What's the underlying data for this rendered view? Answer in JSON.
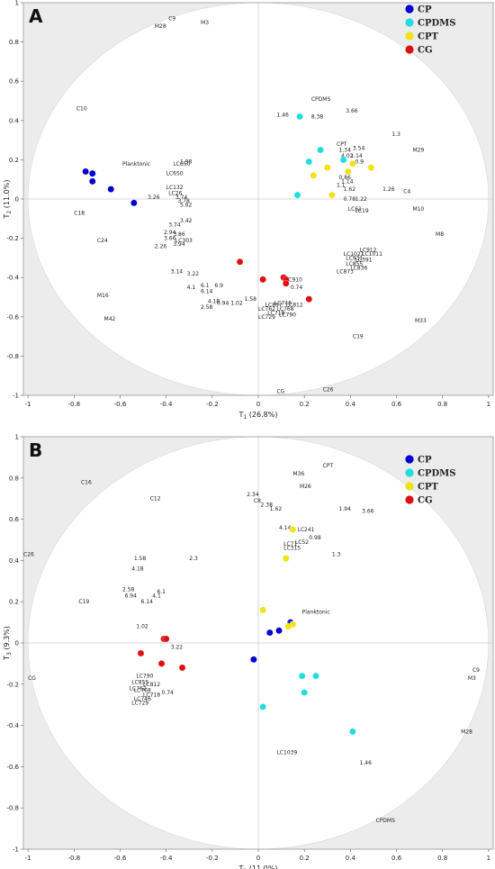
{
  "colors": {
    "CP": "#0000cc",
    "CPDMS": "#22dddd",
    "CPT": "#f2e218",
    "CG": "#dd1111",
    "shade": "#ececec",
    "grid": "#cfcfcf"
  },
  "legend": [
    "CP",
    "CPDMS",
    "CPT",
    "CG"
  ],
  "chart_data": [
    {
      "type": "scatter",
      "panel_label": "A",
      "xlabel": "T1 (26.8%)",
      "ylabel": "T2 (11.0%)",
      "xlabel_main": "T",
      "xlabel_sub": "1",
      "xlabel_rest": " (26.8%)",
      "ylabel_main": "T",
      "ylabel_sub": "2",
      "ylabel_rest": " (11.0%)",
      "xlim": [
        -1.02,
        1.02
      ],
      "ylim": [
        -1,
        1
      ],
      "xticks": [
        -1,
        -0.8,
        -0.6,
        -0.4,
        -0.2,
        0,
        0.2,
        0.4,
        0.6,
        0.8,
        1
      ],
      "yticks": [
        -1,
        -0.8,
        -0.6,
        -0.4,
        -0.2,
        0,
        0.2,
        0.4,
        0.6,
        0.8,
        1
      ],
      "xtick_labels": [
        "-1",
        "-0.8",
        "-0.6",
        "-0.4",
        "-0.2",
        "0",
        "0.2",
        "0.4",
        "0.6",
        "0.8",
        "1"
      ],
      "ytick_labels": [
        "-1",
        "-0.8",
        "-0.6",
        "-0.4",
        "-0.2",
        "0",
        "0.2",
        "0.4",
        "0.6",
        "0.8",
        "1"
      ],
      "series": [
        {
          "name": "CP",
          "color": "#0000cc",
          "points": [
            [
              -0.75,
              0.14
            ],
            [
              -0.72,
              0.13
            ],
            [
              -0.72,
              0.09
            ],
            [
              -0.64,
              0.05
            ],
            [
              -0.54,
              -0.02
            ]
          ]
        },
        {
          "name": "CPDMS",
          "color": "#22dddd",
          "points": [
            [
              0.18,
              0.42
            ],
            [
              0.27,
              0.25
            ],
            [
              0.22,
              0.19
            ],
            [
              0.37,
              0.2
            ],
            [
              0.17,
              0.02
            ]
          ]
        },
        {
          "name": "CPT",
          "color": "#f2e218",
          "points": [
            [
              0.3,
              0.16
            ],
            [
              0.39,
              0.14
            ],
            [
              0.41,
              0.18
            ],
            [
              0.49,
              0.16
            ],
            [
              0.24,
              0.12
            ],
            [
              0.32,
              0.02
            ]
          ]
        },
        {
          "name": "CG",
          "color": "#dd1111",
          "points": [
            [
              -0.08,
              -0.32
            ],
            [
              0.02,
              -0.41
            ],
            [
              0.11,
              -0.4
            ],
            [
              0.12,
              -0.41
            ],
            [
              0.12,
              -0.43
            ],
            [
              0.22,
              -0.51
            ]
          ]
        }
      ],
      "labels": [
        {
          "t": "C9",
          "x": -0.39,
          "y": 0.92
        },
        {
          "t": "M3",
          "x": -0.25,
          "y": 0.9
        },
        {
          "t": "M28",
          "x": -0.45,
          "y": 0.88
        },
        {
          "t": "CPDMS",
          "x": 0.23,
          "y": 0.51
        },
        {
          "t": "3.66",
          "x": 0.38,
          "y": 0.45
        },
        {
          "t": "C10",
          "x": -0.79,
          "y": 0.46
        },
        {
          "t": "1.46",
          "x": 0.08,
          "y": 0.43
        },
        {
          "t": "8.38",
          "x": 0.23,
          "y": 0.42
        },
        {
          "t": "1.3",
          "x": 0.58,
          "y": 0.33
        },
        {
          "t": "CPT",
          "x": 0.34,
          "y": 0.28
        },
        {
          "t": "3.54",
          "x": 0.41,
          "y": 0.26
        },
        {
          "t": "M29",
          "x": 0.67,
          "y": 0.25
        },
        {
          "t": "1.34",
          "x": 0.35,
          "y": 0.25
        },
        {
          "t": "4.02",
          "x": 0.36,
          "y": 0.22
        },
        {
          "t": "1.14",
          "x": 0.4,
          "y": 0.22
        },
        {
          "t": "0.9",
          "x": 0.42,
          "y": 0.19
        },
        {
          "t": "1.98",
          "x": -0.34,
          "y": 0.19
        },
        {
          "t": "LC650",
          "x": -0.37,
          "y": 0.18
        },
        {
          "t": "Planktonic",
          "x": -0.59,
          "y": 0.18
        },
        {
          "t": "LC650",
          "x": -0.4,
          "y": 0.13
        },
        {
          "t": "0.86",
          "x": 0.35,
          "y": 0.11
        },
        {
          "t": "1.14",
          "x": 0.36,
          "y": 0.09
        },
        {
          "t": "1.1",
          "x": 0.34,
          "y": 0.07
        },
        {
          "t": "LC132",
          "x": -0.4,
          "y": 0.06
        },
        {
          "t": "1.62",
          "x": 0.37,
          "y": 0.05
        },
        {
          "t": "1.26",
          "x": 0.54,
          "y": 0.05
        },
        {
          "t": "C4",
          "x": 0.63,
          "y": 0.04
        },
        {
          "t": "LC26",
          "x": -0.39,
          "y": 0.03
        },
        {
          "t": "3.26",
          "x": -0.48,
          "y": 0.01
        },
        {
          "t": "3.74",
          "x": -0.36,
          "y": 0.01
        },
        {
          "t": "0.78",
          "x": 0.37,
          "y": 0.0
        },
        {
          "t": "1.22",
          "x": 0.42,
          "y": 0.0
        },
        {
          "t": "3.78",
          "x": -0.35,
          "y": -0.01
        },
        {
          "t": "5.62",
          "x": -0.34,
          "y": -0.03
        },
        {
          "t": "LC61",
          "x": 0.39,
          "y": -0.05
        },
        {
          "t": "LC19",
          "x": 0.42,
          "y": -0.06
        },
        {
          "t": "M10",
          "x": 0.67,
          "y": -0.05
        },
        {
          "t": "C18",
          "x": -0.8,
          "y": -0.07
        },
        {
          "t": "3.42",
          "x": -0.34,
          "y": -0.11
        },
        {
          "t": "3.74",
          "x": -0.39,
          "y": -0.13
        },
        {
          "t": "M8",
          "x": 0.77,
          "y": -0.18
        },
        {
          "t": "2.94",
          "x": -0.41,
          "y": -0.17
        },
        {
          "t": "3.86",
          "x": -0.37,
          "y": -0.18
        },
        {
          "t": "C24",
          "x": -0.7,
          "y": -0.21
        },
        {
          "t": "3.66",
          "x": -0.41,
          "y": -0.2
        },
        {
          "t": "LC303",
          "x": -0.36,
          "y": -0.21
        },
        {
          "t": "2.26",
          "x": -0.45,
          "y": -0.24
        },
        {
          "t": "3.94",
          "x": -0.37,
          "y": -0.23
        },
        {
          "t": "LC912",
          "x": 0.44,
          "y": -0.26
        },
        {
          "t": "LC1021",
          "x": 0.37,
          "y": -0.28
        },
        {
          "t": "LC1011",
          "x": 0.45,
          "y": -0.28
        },
        {
          "t": "LC931",
          "x": 0.38,
          "y": -0.3
        },
        {
          "t": "LC391",
          "x": 0.42,
          "y": -0.31
        },
        {
          "t": "LC855",
          "x": 0.38,
          "y": -0.33
        },
        {
          "t": "LC836",
          "x": 0.4,
          "y": -0.35
        },
        {
          "t": "LC873",
          "x": 0.34,
          "y": -0.37
        },
        {
          "t": "3.14",
          "x": -0.38,
          "y": -0.37
        },
        {
          "t": "3.22",
          "x": -0.31,
          "y": -0.38
        },
        {
          "t": "C910",
          "x": 0.13,
          "y": -0.41
        },
        {
          "t": "4.1",
          "x": -0.31,
          "y": -0.45
        },
        {
          "t": "6.1",
          "x": -0.25,
          "y": -0.44
        },
        {
          "t": "6.9",
          "x": -0.19,
          "y": -0.44
        },
        {
          "t": "0.74",
          "x": 0.14,
          "y": -0.45
        },
        {
          "t": "M16",
          "x": -0.7,
          "y": -0.49
        },
        {
          "t": "6.14",
          "x": -0.25,
          "y": -0.47
        },
        {
          "t": "1.58",
          "x": -0.06,
          "y": -0.51
        },
        {
          "t": "4.18",
          "x": -0.22,
          "y": -0.52
        },
        {
          "t": "LC746",
          "x": 0.07,
          "y": -0.53
        },
        {
          "t": "LC812",
          "x": 0.12,
          "y": -0.54
        },
        {
          "t": "0.94",
          "x": -0.18,
          "y": -0.53
        },
        {
          "t": "1.02",
          "x": -0.12,
          "y": -0.53
        },
        {
          "t": "LC857",
          "x": 0.03,
          "y": -0.54
        },
        {
          "t": "2.58",
          "x": -0.25,
          "y": -0.55
        },
        {
          "t": "LC762",
          "x": 0.0,
          "y": -0.56
        },
        {
          "t": "LC768",
          "x": 0.08,
          "y": -0.56
        },
        {
          "t": "LC718",
          "x": 0.04,
          "y": -0.58
        },
        {
          "t": "LC790",
          "x": 0.09,
          "y": -0.59
        },
        {
          "t": "LC729",
          "x": 0.0,
          "y": -0.6
        },
        {
          "t": "M42",
          "x": -0.67,
          "y": -0.61
        },
        {
          "t": "M33",
          "x": 0.68,
          "y": -0.62
        },
        {
          "t": "C19",
          "x": 0.41,
          "y": -0.7
        },
        {
          "t": "CG",
          "x": 0.08,
          "y": -0.98
        },
        {
          "t": "C26",
          "x": 0.28,
          "y": -0.97
        }
      ]
    },
    {
      "type": "scatter",
      "panel_label": "B",
      "xlabel": "T2 (11.0%)",
      "ylabel": "T3 (9.3%)",
      "xlabel_main": "T",
      "xlabel_sub": "2",
      "xlabel_rest": " (11.0%)",
      "ylabel_main": "T",
      "ylabel_sub": "3",
      "ylabel_rest": " (9.3%)",
      "xlim": [
        -1.02,
        1.02
      ],
      "ylim": [
        -1,
        1
      ],
      "xticks": [
        -1,
        -0.8,
        -0.6,
        -0.4,
        -0.2,
        0,
        0.2,
        0.4,
        0.6,
        0.8,
        1
      ],
      "yticks": [
        -1,
        -0.8,
        -0.6,
        -0.4,
        -0.2,
        0,
        0.2,
        0.4,
        0.6,
        0.8,
        1
      ],
      "xtick_labels": [
        "-1",
        "-0.8",
        "-0.6",
        "-0.4",
        "-0.2",
        "0",
        "0.2",
        "0.4",
        "0.6",
        "0.8",
        "1"
      ],
      "ytick_labels": [
        "-1",
        "-0.8",
        "-0.6",
        "-0.4",
        "-0.2",
        "0",
        "0.2",
        "0.4",
        "0.6",
        "0.8",
        "1"
      ],
      "series": [
        {
          "name": "CP",
          "color": "#0000cc",
          "points": [
            [
              -0.02,
              -0.08
            ],
            [
              0.05,
              0.05
            ],
            [
              0.09,
              0.06
            ],
            [
              0.14,
              0.1
            ],
            [
              0.14,
              0.09
            ]
          ]
        },
        {
          "name": "CPDMS",
          "color": "#22dddd",
          "points": [
            [
              0.19,
              -0.16
            ],
            [
              0.25,
              -0.16
            ],
            [
              0.2,
              -0.24
            ],
            [
              0.02,
              -0.31
            ],
            [
              0.41,
              -0.43
            ]
          ]
        },
        {
          "name": "CPT",
          "color": "#f2e218",
          "points": [
            [
              0.15,
              0.55
            ],
            [
              0.12,
              0.41
            ],
            [
              0.02,
              0.16
            ],
            [
              0.15,
              0.09
            ],
            [
              0.13,
              0.08
            ]
          ]
        },
        {
          "name": "CG",
          "color": "#dd1111",
          "points": [
            [
              -0.41,
              0.02
            ],
            [
              -0.4,
              0.02
            ],
            [
              -0.51,
              -0.05
            ],
            [
              -0.33,
              -0.12
            ],
            [
              -0.42,
              -0.1
            ]
          ]
        }
      ],
      "labels": [
        {
          "t": "CPT",
          "x": 0.28,
          "y": 0.86
        },
        {
          "t": "M36",
          "x": 0.15,
          "y": 0.82
        },
        {
          "t": "M26",
          "x": 0.18,
          "y": 0.76
        },
        {
          "t": "C16",
          "x": -0.77,
          "y": 0.78
        },
        {
          "t": "C12",
          "x": -0.47,
          "y": 0.7
        },
        {
          "t": "2.34",
          "x": -0.05,
          "y": 0.72
        },
        {
          "t": "C8",
          "x": -0.02,
          "y": 0.69
        },
        {
          "t": "2.38",
          "x": 0.01,
          "y": 0.67
        },
        {
          "t": "1.62",
          "x": 0.05,
          "y": 0.65
        },
        {
          "t": "1.94",
          "x": 0.35,
          "y": 0.65
        },
        {
          "t": "3.66",
          "x": 0.45,
          "y": 0.64
        },
        {
          "t": "4.14",
          "x": 0.09,
          "y": 0.56
        },
        {
          "t": "LC241",
          "x": 0.17,
          "y": 0.55
        },
        {
          "t": "0.98",
          "x": 0.22,
          "y": 0.51
        },
        {
          "t": "LC52",
          "x": 0.16,
          "y": 0.49
        },
        {
          "t": "LC71",
          "x": 0.11,
          "y": 0.48
        },
        {
          "t": "LC315",
          "x": 0.11,
          "y": 0.46
        },
        {
          "t": "1.3",
          "x": 0.32,
          "y": 0.43
        },
        {
          "t": "C26",
          "x": -1.02,
          "y": 0.43
        },
        {
          "t": "1.58",
          "x": -0.54,
          "y": 0.41
        },
        {
          "t": "2.3",
          "x": -0.3,
          "y": 0.41
        },
        {
          "t": "4.18",
          "x": -0.55,
          "y": 0.36
        },
        {
          "t": "2.58",
          "x": -0.59,
          "y": 0.26
        },
        {
          "t": "6.1",
          "x": -0.44,
          "y": 0.25
        },
        {
          "t": "6.94",
          "x": -0.58,
          "y": 0.23
        },
        {
          "t": "4.1",
          "x": -0.46,
          "y": 0.23
        },
        {
          "t": "C19",
          "x": -0.78,
          "y": 0.2
        },
        {
          "t": "6.14",
          "x": -0.51,
          "y": 0.2
        },
        {
          "t": "Planktonic",
          "x": 0.19,
          "y": 0.15
        },
        {
          "t": "1.02",
          "x": -0.53,
          "y": 0.08
        },
        {
          "t": "3.22",
          "x": -0.38,
          "y": -0.02
        },
        {
          "t": "CG",
          "x": -1.0,
          "y": -0.17
        },
        {
          "t": "LC790",
          "x": -0.53,
          "y": -0.16
        },
        {
          "t": "LC855",
          "x": -0.55,
          "y": -0.19
        },
        {
          "t": "LC812",
          "x": -0.5,
          "y": -0.2
        },
        {
          "t": "LC762",
          "x": -0.56,
          "y": -0.22
        },
        {
          "t": "LC768",
          "x": -0.54,
          "y": -0.23
        },
        {
          "t": "LC718",
          "x": -0.5,
          "y": -0.25
        },
        {
          "t": "0.74",
          "x": -0.42,
          "y": -0.24
        },
        {
          "t": "LC746",
          "x": -0.54,
          "y": -0.27
        },
        {
          "t": "LC729",
          "x": -0.55,
          "y": -0.29
        },
        {
          "t": "C9",
          "x": 0.93,
          "y": -0.13
        },
        {
          "t": "M3",
          "x": 0.91,
          "y": -0.17
        },
        {
          "t": "M28",
          "x": 0.88,
          "y": -0.43
        },
        {
          "t": "LC1039",
          "x": 0.08,
          "y": -0.53
        },
        {
          "t": "1.46",
          "x": 0.44,
          "y": -0.58
        },
        {
          "t": "CPDMS",
          "x": 0.51,
          "y": -0.86
        }
      ]
    }
  ]
}
